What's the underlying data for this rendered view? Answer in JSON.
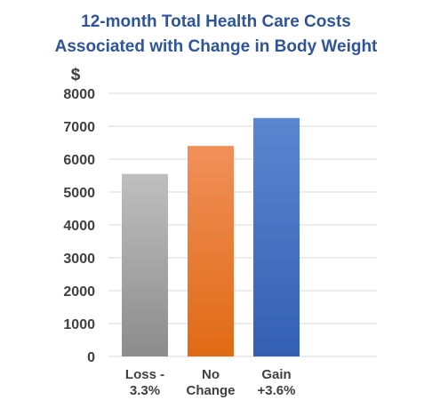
{
  "chart_data": {
    "type": "bar",
    "title": [
      "12-month Total Health Care Costs",
      "Associated with Change in Body Weight"
    ],
    "ylabel": "$",
    "xlabel": "",
    "categories": [
      [
        "Loss -",
        "3.3%"
      ],
      [
        "No",
        "Change"
      ],
      [
        "Gain",
        "+3.6%"
      ]
    ],
    "values": [
      5550,
      6400,
      7250
    ],
    "ylim": [
      0,
      8000
    ],
    "yticks": [
      0,
      1000,
      2000,
      3000,
      4000,
      5000,
      6000,
      7000,
      8000
    ],
    "grid": true,
    "legend": "none",
    "colors": [
      "#a6a6a6",
      "#ed7d31",
      "#4472c4"
    ]
  }
}
